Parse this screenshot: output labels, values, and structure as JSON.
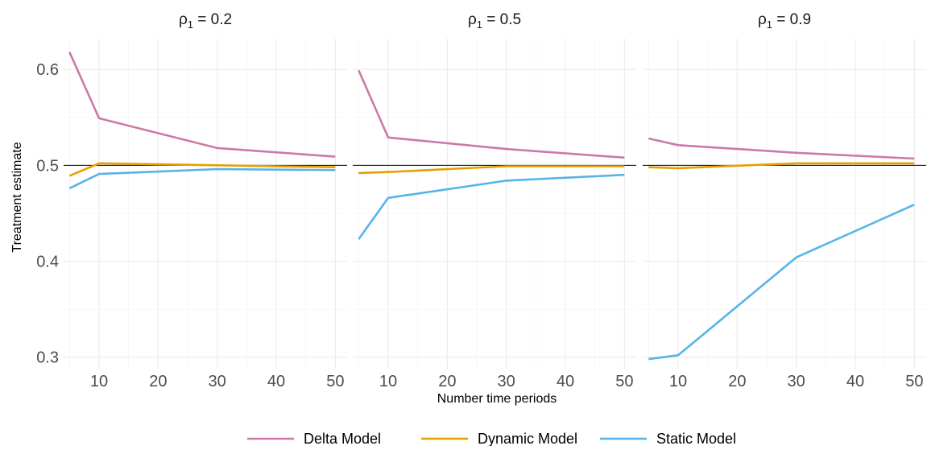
{
  "chart_data": {
    "type": "line",
    "ylabel": "Treatment estimate",
    "xlabel": "Number time periods",
    "x": [
      5,
      10,
      30,
      50
    ],
    "x_ticks": [
      "10",
      "20",
      "30",
      "40",
      "50"
    ],
    "y_ticks": [
      "0.3",
      "0.4",
      "0.5",
      "0.6"
    ],
    "xlim": [
      4,
      52
    ],
    "ylim": [
      0.288,
      0.632
    ],
    "reference_line": 0.5,
    "colors": {
      "Delta Model": "#CC79A7",
      "Dynamic Model": "#E69F00",
      "Static Model": "#56B4E9"
    },
    "legend": [
      "Delta Model",
      "Dynamic Model",
      "Static Model"
    ],
    "legend_position": "bottom",
    "grid": true,
    "panels": [
      {
        "title_prefix": "ρ",
        "title_sub": "1",
        "title_value": "= 0.2",
        "series": [
          {
            "name": "Delta Model",
            "values": [
              0.618,
              0.549,
              0.518,
              0.509
            ]
          },
          {
            "name": "Dynamic Model",
            "values": [
              0.489,
              0.502,
              0.5,
              0.498
            ]
          },
          {
            "name": "Static Model",
            "values": [
              0.476,
              0.491,
              0.496,
              0.495
            ]
          }
        ]
      },
      {
        "title_prefix": "ρ",
        "title_sub": "1",
        "title_value": "= 0.5",
        "series": [
          {
            "name": "Delta Model",
            "values": [
              0.599,
              0.529,
              0.517,
              0.508
            ]
          },
          {
            "name": "Dynamic Model",
            "values": [
              0.492,
              0.493,
              0.499,
              0.499
            ]
          },
          {
            "name": "Static Model",
            "values": [
              0.423,
              0.466,
              0.484,
              0.49
            ]
          }
        ]
      },
      {
        "title_prefix": "ρ",
        "title_sub": "1",
        "title_value": "= 0.9",
        "series": [
          {
            "name": "Delta Model",
            "values": [
              0.528,
              0.521,
              0.513,
              0.507
            ]
          },
          {
            "name": "Dynamic Model",
            "values": [
              0.498,
              0.497,
              0.502,
              0.502
            ]
          },
          {
            "name": "Static Model",
            "values": [
              0.298,
              0.302,
              0.404,
              0.459
            ]
          }
        ]
      }
    ]
  }
}
